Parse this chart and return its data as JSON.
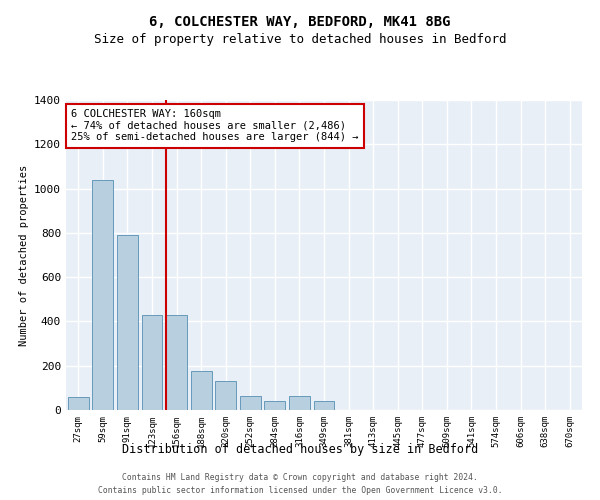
{
  "title": "6, COLCHESTER WAY, BEDFORD, MK41 8BG",
  "subtitle": "Size of property relative to detached houses in Bedford",
  "xlabel": "Distribution of detached houses by size in Bedford",
  "ylabel": "Number of detached properties",
  "categories": [
    "27sqm",
    "59sqm",
    "91sqm",
    "123sqm",
    "156sqm",
    "188sqm",
    "220sqm",
    "252sqm",
    "284sqm",
    "316sqm",
    "349sqm",
    "381sqm",
    "413sqm",
    "445sqm",
    "477sqm",
    "509sqm",
    "541sqm",
    "574sqm",
    "606sqm",
    "638sqm",
    "670sqm"
  ],
  "values": [
    57,
    1040,
    790,
    430,
    430,
    175,
    130,
    65,
    40,
    65,
    40,
    0,
    0,
    0,
    0,
    0,
    0,
    0,
    0,
    0,
    0
  ],
  "bar_color": "#b8cfe0",
  "bar_edge_color": "#6699bb",
  "vline_x_index": 4,
  "vline_color": "#cc0000",
  "annotation_text": "6 COLCHESTER WAY: 160sqm\n← 74% of detached houses are smaller (2,486)\n25% of semi-detached houses are larger (844) →",
  "annotation_box_color": "#ffffff",
  "annotation_box_edge_color": "#cc0000",
  "ylim": [
    0,
    1400
  ],
  "yticks": [
    0,
    200,
    400,
    600,
    800,
    1000,
    1200,
    1400
  ],
  "bg_color": "#e8eff7",
  "grid_color": "#ffffff",
  "title_fontsize": 10,
  "subtitle_fontsize": 9,
  "footer_line1": "Contains HM Land Registry data © Crown copyright and database right 2024.",
  "footer_line2": "Contains public sector information licensed under the Open Government Licence v3.0."
}
